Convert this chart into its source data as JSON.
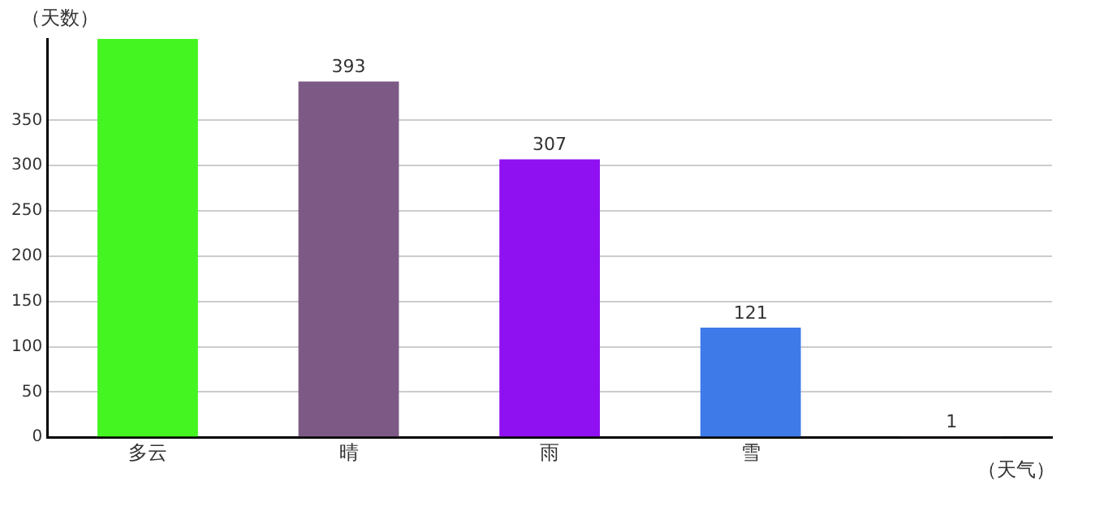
{
  "chart_data": {
    "type": "bar",
    "ylabel": "（天数）",
    "xlabel": "（天气）",
    "categories": [
      "多云",
      "晴",
      "雨",
      "雪",
      null
    ],
    "values": [
      440,
      393,
      307,
      121,
      1
    ],
    "colors": [
      "#44f522",
      "#7d5a85",
      "#8f10f0",
      "#3f7be8",
      "#5a3030"
    ],
    "value_labels": [
      null,
      "393",
      "307",
      "121",
      "1"
    ],
    "ylim": [
      0,
      440
    ],
    "yticks": [
      0,
      50,
      100,
      150,
      200,
      250,
      300,
      350
    ],
    "grid": "y",
    "legend": false
  }
}
